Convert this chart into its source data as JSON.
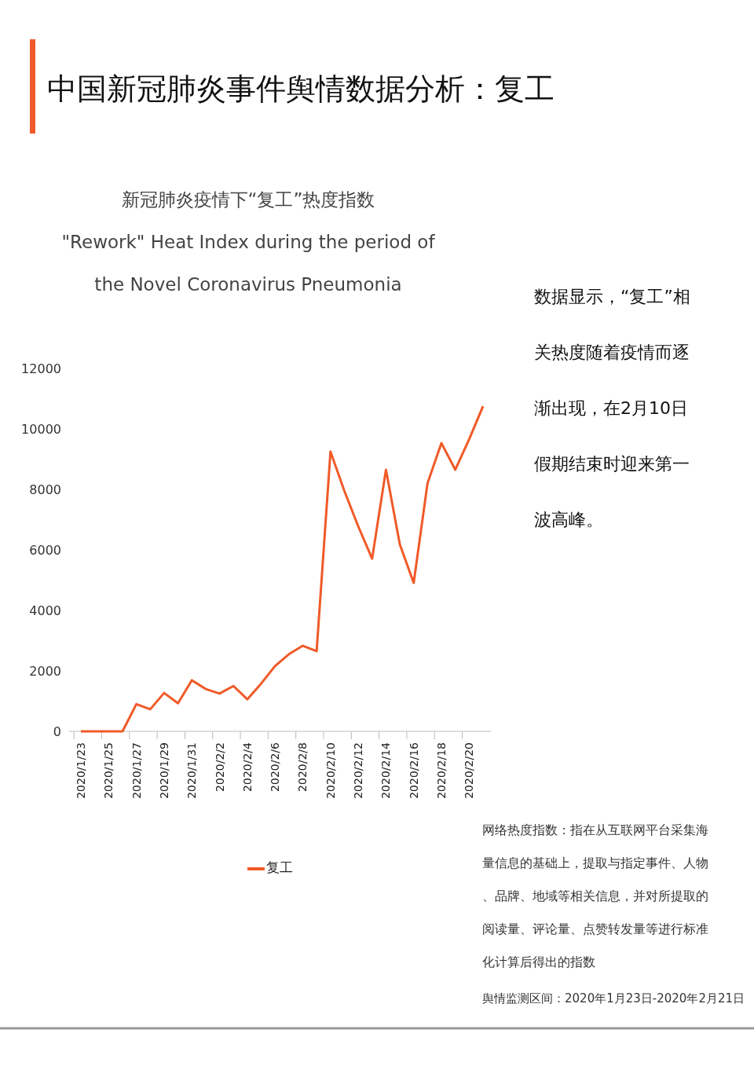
{
  "chart_data": {
    "type": "line",
    "title": "中国新冠肺炎事件舆情数据分析：复工",
    "subtitle": "新冠肺炎疫情下“复工”热度指数\n\"Rework\" Heat Index during the period of\nthe Novel Coronavirus Pneumonia",
    "categories": [
      "2020/1/23",
      null,
      "2020/1/25",
      null,
      "2020/1/27",
      null,
      "2020/1/29",
      null,
      "2020/1/31",
      null,
      "2020/2/2",
      null,
      "2020/2/4",
      null,
      "2020/2/6",
      null,
      "2020/2/8",
      null,
      "2020/2/10",
      null,
      "2020/2/12",
      null,
      "2020/2/14",
      null,
      "2020/2/16",
      null,
      "2020/2/18",
      null,
      "2020/2/20",
      null
    ],
    "series": [
      {
        "name": "复工",
        "color": "#f05a28",
        "values": [
          0,
          0,
          0,
          0,
          900,
          730,
          1270,
          930,
          1690,
          1400,
          1250,
          1500,
          1060,
          1580,
          2160,
          2550,
          2830,
          2650,
          9250,
          7950,
          6780,
          5710,
          8650,
          6180,
          4910,
          8210,
          9530,
          8650,
          9660,
          10750
        ]
      }
    ],
    "ylim": [
      0,
      12000
    ],
    "yticks": [
      0,
      2000,
      4000,
      6000,
      8000,
      10000,
      12000
    ],
    "grid": false,
    "legend": "bottom",
    "marker": "none",
    "line_style": "solid",
    "annotations": [
      "数据显示，“复工”相关热度随着疫情而逐渐出现，在2月10日假期结束时迎来第一波高峰。",
      "网络热度指数：指在从互联网平台采集海量信息的基础上，提取与指定事件、人物、品牌、地域等相关信息，并对所提取的阅读量、评论量、点赞转发量等进行标准化计算后得出的指数",
      "舆情监测区间：2020年1月23日-2020年2月21日"
    ]
  }
}
